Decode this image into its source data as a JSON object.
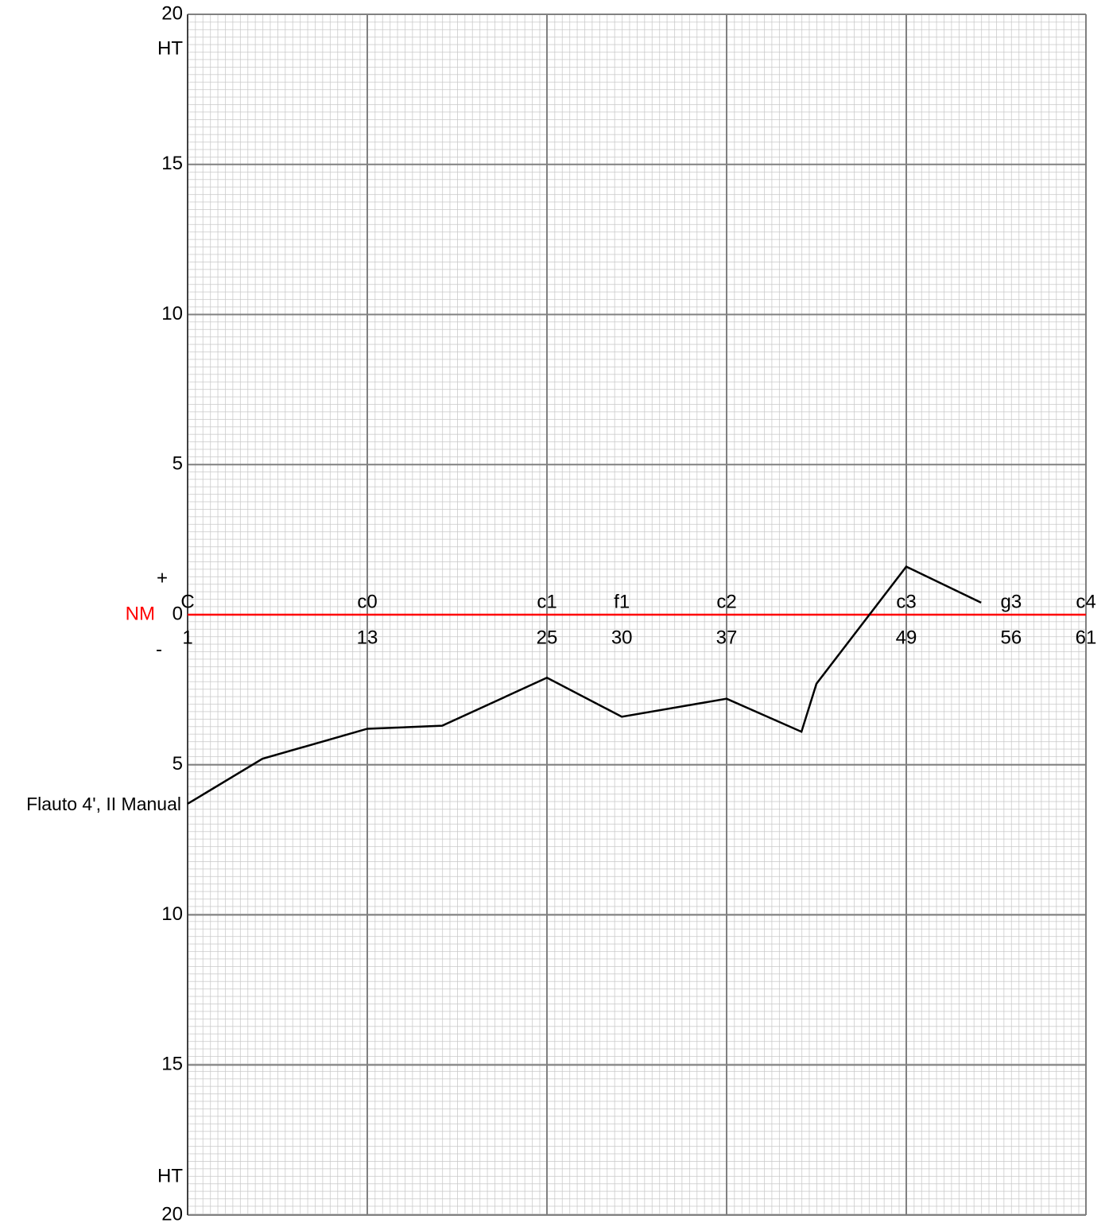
{
  "chart_data": {
    "type": "line",
    "xlim": [
      1,
      61
    ],
    "xticks": [
      1,
      13,
      25,
      30,
      37,
      49,
      56,
      61
    ],
    "xtick_names": [
      "C",
      "c0",
      "c1",
      "f1",
      "c2",
      "c3",
      "g3",
      "c4"
    ],
    "ylim": [
      -20,
      20
    ],
    "yticks": [
      20,
      15,
      10,
      5,
      0,
      {
        "value": -5,
        "label": "5"
      },
      {
        "value": -10,
        "label": "10"
      },
      {
        "value": -15,
        "label": "15"
      },
      {
        "value": -20,
        "label": "20"
      }
    ],
    "upper_label": "HT",
    "lower_label": "HT",
    "plus_label": "+",
    "minus_label": "-",
    "zero_label": "NM",
    "zero_color": "#ff0000",
    "grid": true,
    "series": [
      {
        "name": "Flauto 4', II Manual",
        "color": "#000000",
        "x": [
          1,
          6,
          13,
          18,
          25,
          30,
          37,
          42,
          43,
          49,
          54
        ],
        "values": [
          -6.3,
          -4.8,
          -3.8,
          -3.7,
          -2.1,
          -3.4,
          -2.8,
          -3.9,
          -2.3,
          1.6,
          0.4
        ]
      }
    ]
  }
}
